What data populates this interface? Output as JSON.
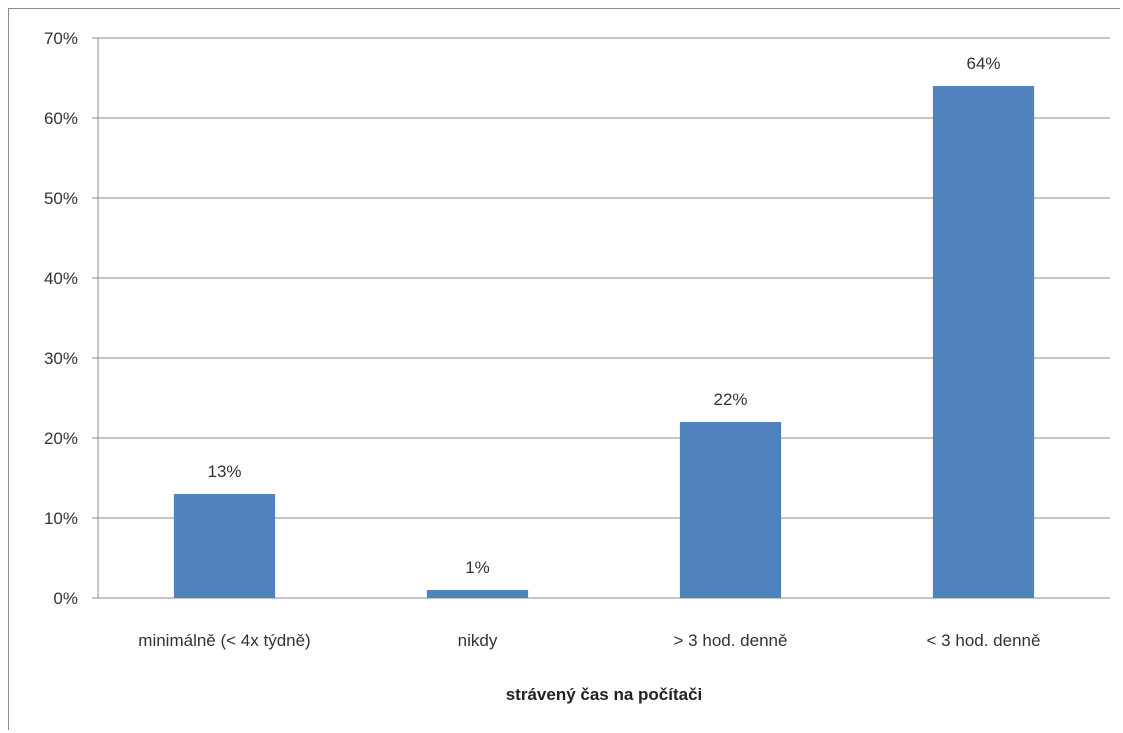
{
  "chart_data": {
    "type": "bar",
    "title": "",
    "xlabel": "strávený čas na počítači",
    "ylabel": "",
    "categories": [
      "minimálně (< 4x týdně)",
      "nikdy",
      "> 3 hod. denně",
      "< 3 hod. denně"
    ],
    "values": [
      13,
      1,
      22,
      64
    ],
    "value_labels": [
      "13%",
      "1%",
      "22%",
      "64%"
    ],
    "ylim": [
      0,
      70
    ],
    "yticks": [
      0,
      10,
      20,
      30,
      40,
      50,
      60,
      70
    ],
    "ytick_labels": [
      "0%",
      "10%",
      "20%",
      "30%",
      "40%",
      "50%",
      "60%",
      "70%"
    ],
    "grid": true,
    "legend": "none",
    "bar_color": "#4f81bd"
  }
}
